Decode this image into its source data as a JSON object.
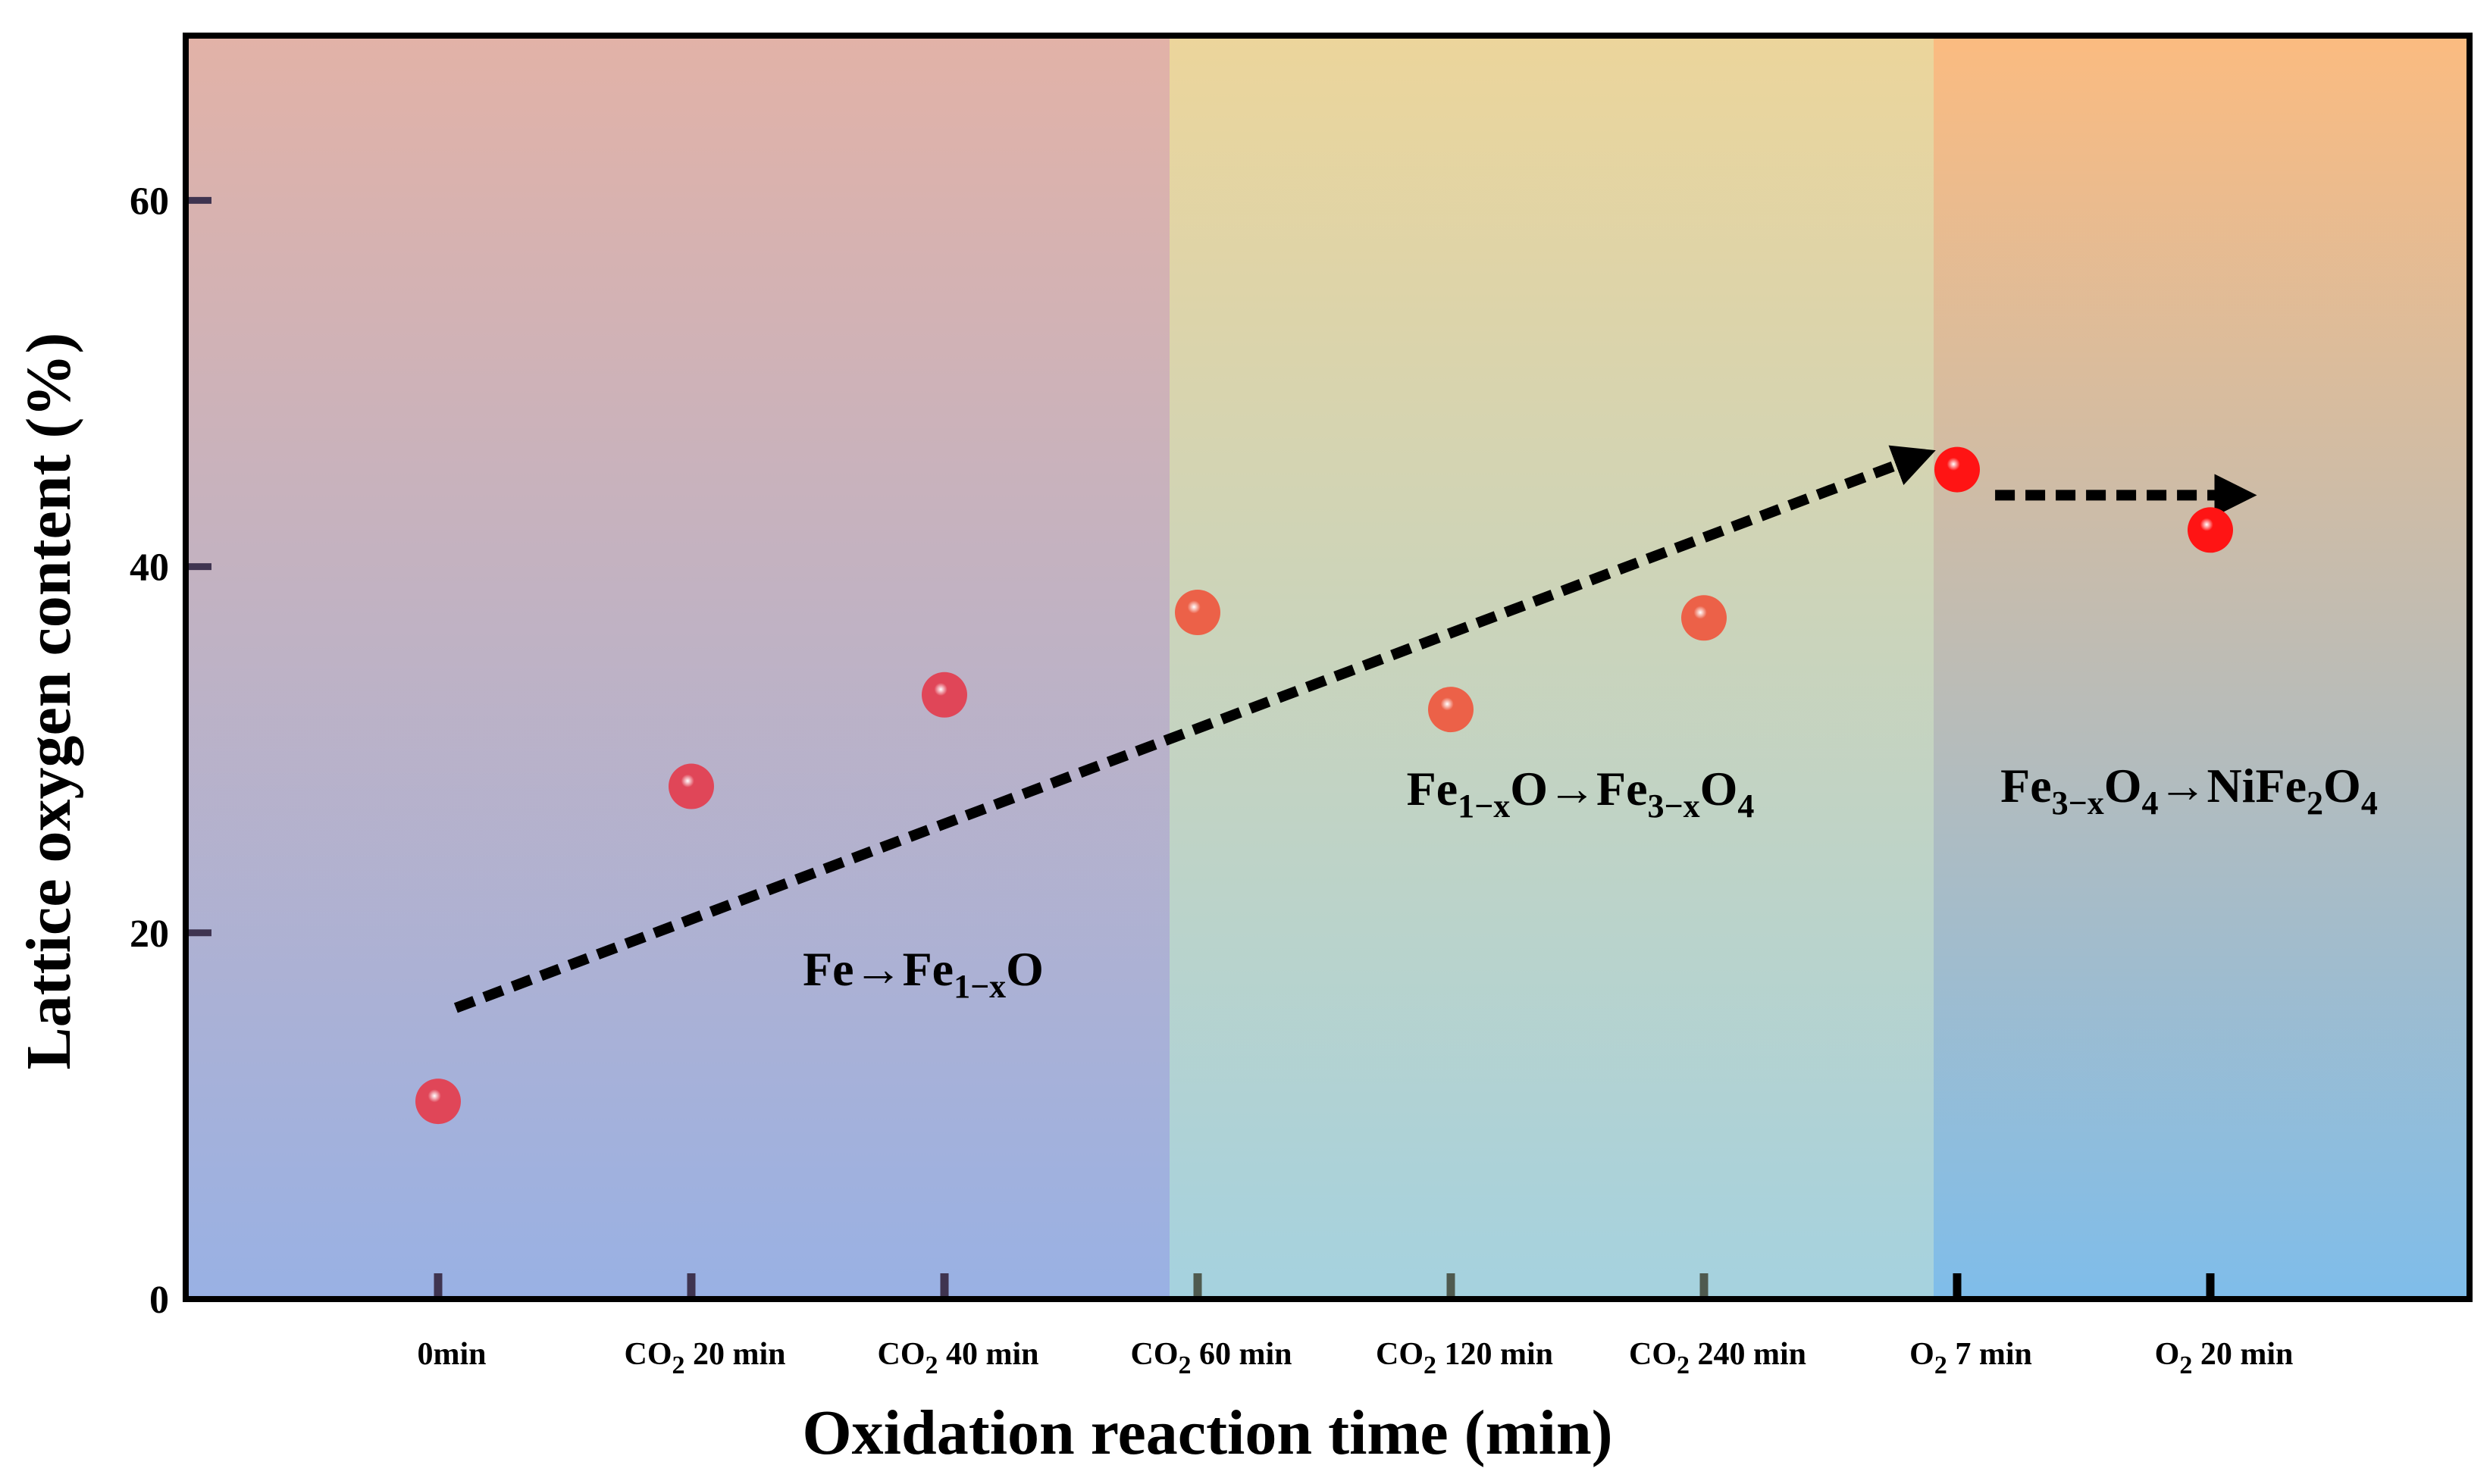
{
  "chart_data": {
    "type": "scatter",
    "title": "",
    "xlabel": "Oxidation reaction time (min)",
    "ylabel": "Lattice oxygen content  (%)",
    "ylim": [
      0,
      69
    ],
    "yticks": [
      0,
      20,
      40,
      60
    ],
    "grid": false,
    "categories": [
      {
        "pre": "",
        "sub": "",
        "post": "0min"
      },
      {
        "pre": "CO",
        "sub": "2",
        "post": " 20 min"
      },
      {
        "pre": "CO",
        "sub": "2",
        "post": " 40 min"
      },
      {
        "pre": "CO",
        "sub": "2",
        "post": " 60 min"
      },
      {
        "pre": "CO",
        "sub": "2",
        "post": " 120 min"
      },
      {
        "pre": "CO",
        "sub": "2",
        "post": " 240 min"
      },
      {
        "pre": "O",
        "sub": "2",
        "post": " 7 min"
      },
      {
        "pre": "O",
        "sub": "2",
        "post": " 20 min"
      }
    ],
    "series": [
      {
        "name": "Lattice oxygen content",
        "values": [
          10.8,
          28.0,
          33.0,
          37.5,
          32.2,
          37.2,
          45.3,
          42.0
        ]
      }
    ],
    "regions": [
      {
        "from_index": 0,
        "to_index": 2,
        "label": [
          [
            "Fe→Fe",
            ""
          ],
          [
            "1−x",
            "sub"
          ],
          [
            "O",
            ""
          ]
        ]
      },
      {
        "from_index": 3,
        "to_index": 5,
        "label": [
          [
            "Fe",
            ""
          ],
          [
            "1−x",
            "sub"
          ],
          [
            "O→Fe",
            ""
          ],
          [
            "3−x",
            "sub"
          ],
          [
            "O",
            ""
          ],
          [
            "4",
            "sub"
          ]
        ]
      },
      {
        "from_index": 6,
        "to_index": 7,
        "label": [
          [
            "Fe",
            ""
          ],
          [
            "3−x",
            "sub"
          ],
          [
            "O",
            ""
          ],
          [
            "4",
            "sub"
          ],
          [
            "→NiFe",
            ""
          ],
          [
            "2",
            "sub"
          ],
          [
            "O",
            ""
          ],
          [
            "4",
            "sub"
          ]
        ]
      }
    ],
    "trend_arrows": [
      {
        "from": {
          "index": 0.07,
          "value": 15.9
        },
        "to": {
          "index": 5.79,
          "value": 45.7
        }
      },
      {
        "from": {
          "index": 6.15,
          "value": 43.9
        },
        "to": {
          "index": 7.05,
          "value": 43.9
        }
      }
    ],
    "colors": {
      "region1_top": "#e2b2a7",
      "region1_bottom": "#99b1e4",
      "region2_top": "#ecd59b",
      "region2_bottom": "#a5d2df",
      "region3_top": "#fbbb80",
      "region3_bottom": "#7fbdea",
      "marker_set1": "#e04658",
      "marker_set2": "#ec6148",
      "marker_set3": "#ff1414",
      "arrow": "#000000"
    }
  }
}
